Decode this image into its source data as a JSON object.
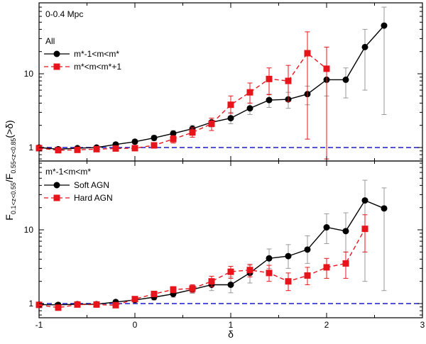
{
  "chart_data": [
    {
      "type": "line",
      "panel": "top",
      "annotation": "0-0.4 Mpc",
      "legend_title": "All",
      "yscale": "log",
      "ylim": [
        0.7,
        90
      ],
      "xlim": [
        -1,
        3
      ],
      "reference_line": 1,
      "series": [
        {
          "name": "m*-1<m<m*",
          "color": "#000000",
          "marker": "circle",
          "style": "solid",
          "x": [
            -1,
            -0.8,
            -0.6,
            -0.4,
            -0.2,
            0,
            0.2,
            0.4,
            0.6,
            0.8,
            1.0,
            1.2,
            1.4,
            1.6,
            1.8,
            2.0,
            2.2,
            2.4,
            2.6
          ],
          "y": [
            1.0,
            0.95,
            0.98,
            1.0,
            1.1,
            1.2,
            1.35,
            1.55,
            1.8,
            2.2,
            2.5,
            3.4,
            4.4,
            4.5,
            5.3,
            8.3,
            8.3,
            23,
            45
          ],
          "err_low": [
            0.93,
            0.9,
            0.93,
            0.95,
            1.03,
            1.12,
            1.24,
            1.4,
            1.6,
            1.9,
            2.1,
            2.8,
            3.5,
            3.4,
            3.8,
            5.0,
            4.7,
            6.0,
            2.8
          ],
          "err_high": [
            1.07,
            1.0,
            1.03,
            1.05,
            1.17,
            1.28,
            1.46,
            1.7,
            2.0,
            2.5,
            3.0,
            4.0,
            5.3,
            5.6,
            6.8,
            11.5,
            12.0,
            40,
            80
          ]
        },
        {
          "name": "m*<m<m*+1",
          "color": "#e8141c",
          "marker": "square",
          "style": "dashed",
          "x": [
            -1,
            -0.8,
            -0.6,
            -0.4,
            -0.2,
            0,
            0.2,
            0.4,
            0.6,
            0.8,
            1.0,
            1.2,
            1.4,
            1.6,
            1.8,
            2.0
          ],
          "y": [
            0.98,
            0.92,
            0.93,
            0.95,
            0.97,
            0.98,
            1.07,
            1.3,
            1.6,
            2.1,
            3.8,
            5.6,
            8.5,
            8.0,
            19,
            11.7
          ],
          "err_low": [
            0.93,
            0.87,
            0.88,
            0.9,
            0.92,
            0.93,
            0.98,
            1.15,
            1.38,
            1.7,
            2.9,
            4.0,
            5.2,
            4.2,
            1.3,
            0.7
          ],
          "err_high": [
            1.03,
            0.97,
            0.98,
            1.0,
            1.02,
            1.03,
            1.16,
            1.45,
            1.85,
            2.5,
            5.0,
            7.5,
            12.0,
            13.0,
            37,
            23
          ]
        }
      ]
    },
    {
      "type": "line",
      "panel": "bottom",
      "legend_title": "m*-1<m<m*",
      "yscale": "log",
      "ylim": [
        0.7,
        90
      ],
      "xlim": [
        -1,
        3
      ],
      "reference_line": 1,
      "series": [
        {
          "name": "Soft AGN",
          "color": "#000000",
          "marker": "circle",
          "style": "solid",
          "x": [
            -1,
            -0.8,
            -0.6,
            -0.4,
            -0.2,
            0,
            0.2,
            0.4,
            0.6,
            0.8,
            1.0,
            1.2,
            1.4,
            1.6,
            1.8,
            2.0,
            2.2,
            2.4,
            2.6
          ],
          "y": [
            0.97,
            0.96,
            0.98,
            0.98,
            1.05,
            1.12,
            1.22,
            1.35,
            1.55,
            1.8,
            1.8,
            2.6,
            4.1,
            4.4,
            5.4,
            10.8,
            9.6,
            25,
            19.5
          ],
          "err_low": [
            0.92,
            0.91,
            0.93,
            0.93,
            0.99,
            1.05,
            1.12,
            1.22,
            1.38,
            1.5,
            1.4,
            1.9,
            3.0,
            3.0,
            3.5,
            6.5,
            5.0,
            2.0,
            1.5
          ],
          "err_high": [
            1.02,
            1.01,
            1.03,
            1.03,
            1.11,
            1.19,
            1.32,
            1.48,
            1.75,
            2.1,
            2.3,
            3.3,
            5.5,
            6.3,
            8.3,
            16.5,
            17,
            47,
            37
          ]
        },
        {
          "name": "Hard AGN",
          "color": "#e8141c",
          "marker": "square",
          "style": "dashed",
          "x": [
            -1,
            -0.8,
            -0.6,
            -0.4,
            -0.2,
            0,
            0.2,
            0.4,
            0.6,
            0.8,
            1.0,
            1.2,
            1.4,
            1.6,
            1.8,
            2.0,
            2.2,
            2.4
          ],
          "y": [
            0.96,
            0.88,
            0.97,
            0.97,
            0.95,
            1.15,
            1.35,
            1.55,
            1.6,
            2.0,
            2.7,
            2.85,
            2.6,
            2.0,
            2.4,
            3.1,
            3.5,
            10.3
          ],
          "err_low": [
            0.91,
            0.83,
            0.92,
            0.92,
            0.9,
            1.07,
            1.25,
            1.4,
            1.42,
            1.7,
            2.2,
            2.3,
            2.0,
            1.5,
            1.8,
            2.2,
            2.2,
            5.0
          ],
          "err_high": [
            1.01,
            0.93,
            1.02,
            1.02,
            1.0,
            1.23,
            1.45,
            1.7,
            1.8,
            2.35,
            3.2,
            3.4,
            3.3,
            2.6,
            3.1,
            4.1,
            5.0,
            16
          ]
        }
      ]
    }
  ],
  "axes": {
    "x_ticks": [
      "-1",
      "0",
      "1",
      "2",
      "3"
    ],
    "y_ticks": [
      "1",
      "10"
    ],
    "xlabel": "δ",
    "ylabel_main": "F",
    "ylabel_sub1": "0.1<z<0.55",
    "ylabel_mid": "/F",
    "ylabel_sub2": "0.55<z<0.85",
    "ylabel_end": "(>δ)"
  },
  "colors": {
    "black_series": "#000000",
    "red_series": "#e8141c",
    "reference_line": "#1a1acc",
    "error_bar_gray": "#999999"
  }
}
